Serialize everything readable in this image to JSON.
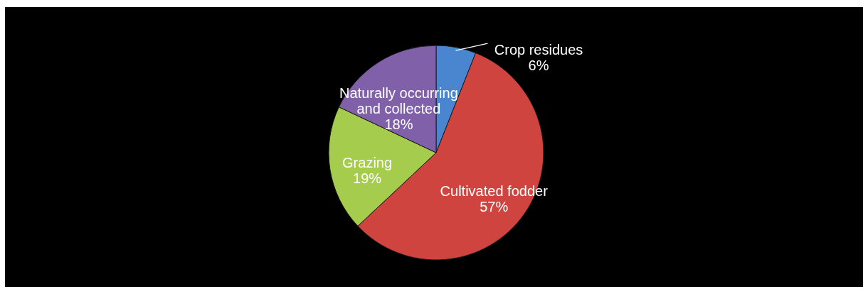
{
  "chart_data": {
    "type": "pie",
    "categories": [
      "Crop residues",
      "Cultivated fodder",
      "Grazing",
      "Naturally occurring and collected"
    ],
    "values": [
      6,
      57,
      19,
      18
    ],
    "colors": [
      "#4a85cf",
      "#d0443f",
      "#a6cc4e",
      "#8060a8"
    ],
    "value_labels": [
      "6%",
      "57%",
      "19%",
      "18%"
    ]
  }
}
